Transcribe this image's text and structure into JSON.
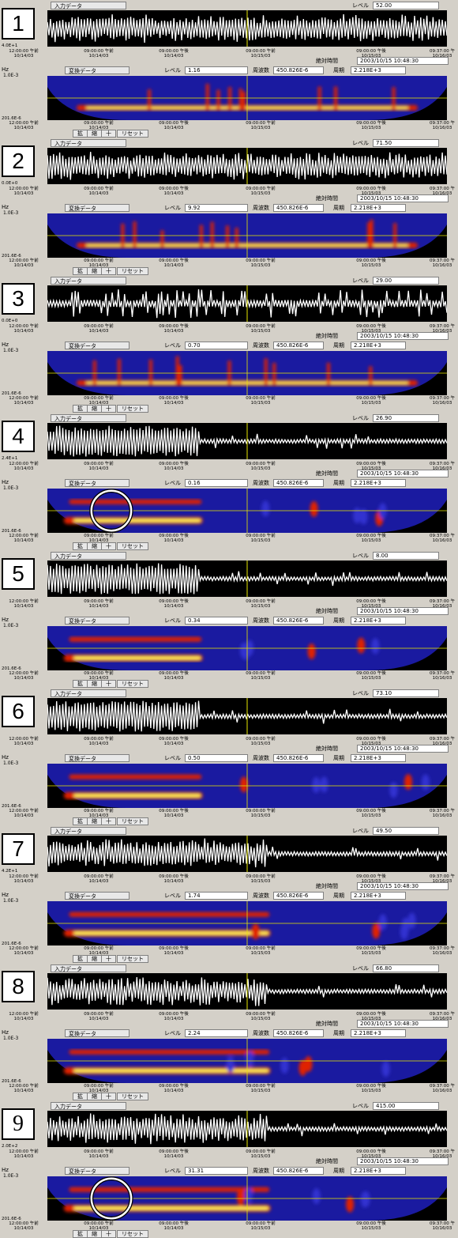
{
  "panels": [
    {
      "number": "1",
      "input_label": "入力データ",
      "level_label": "レベル",
      "input_level": "52.00",
      "transform_label": "変換データ",
      "transform_level": "1.16",
      "wave_ymin": "4.0E+1",
      "hz": "Hz",
      "spec_top": "1.0E-3",
      "spec_bottom": "201.6E-6",
      "freq_label": "周波数",
      "freq_value": "450.826E-6",
      "period_label": "周期",
      "period_value": "2.218E+3",
      "abs_label": "絶対時間",
      "abs_value": "2003/10/15 10:48:30"
    },
    {
      "number": "2",
      "input_label": "入力データ",
      "level_label": "レベル",
      "input_level": "71.50",
      "transform_label": "変換データ",
      "transform_level": "9.92",
      "wave_ymin": "0.0E+0",
      "hz": "Hz",
      "spec_top": "1.0E-3",
      "spec_bottom": "201.6E-6",
      "freq_label": "周波数",
      "freq_value": "450.826E-6",
      "period_label": "周期",
      "period_value": "2.218E+3",
      "abs_label": "絶対時間",
      "abs_value": "2003/10/15 10:48:30"
    },
    {
      "number": "3",
      "input_label": "入力データ",
      "level_label": "レベル",
      "input_level": "29.00",
      "transform_label": "変換データ",
      "transform_level": "0.70",
      "wave_ymin": "0.0E+0",
      "hz": "Hz",
      "spec_top": "1.0E-3",
      "spec_bottom": "201.6E-6",
      "freq_label": "周波数",
      "freq_value": "450.826E-6",
      "period_label": "周期",
      "period_value": "2.218E+3",
      "abs_label": "絶対時間",
      "abs_value": "2003/10/15 10:48:30"
    },
    {
      "number": "4",
      "input_label": "入力データ",
      "level_label": "レベル",
      "input_level": "26.90",
      "transform_label": "変換データ",
      "transform_level": "0.16",
      "wave_ymin": "2.4E+1",
      "hz": "Hz",
      "spec_top": "1.0E-3",
      "spec_bottom": "201.6E-6",
      "freq_label": "周波数",
      "freq_value": "450.826E-6",
      "period_label": "周期",
      "period_value": "2.218E+3",
      "abs_label": "絶対時間",
      "abs_value": "2003/10/15 10:48:30"
    },
    {
      "number": "5",
      "input_label": "入力データ",
      "level_label": "レベル",
      "input_level": "8.00",
      "transform_label": "変換データ",
      "transform_level": "0.34",
      "wave_ymin": "",
      "hz": "Hz",
      "spec_top": "1.0E-3",
      "spec_bottom": "201.6E-6",
      "freq_label": "周波数",
      "freq_value": "450.826E-6",
      "period_label": "周期",
      "period_value": "2.218E+3",
      "abs_label": "絶対時間",
      "abs_value": "2003/10/15 10:48:30"
    },
    {
      "number": "6",
      "input_label": "入力データ",
      "level_label": "レベル",
      "input_level": "73.10",
      "transform_label": "変換データ",
      "transform_level": "0.50",
      "wave_ymin": "",
      "hz": "Hz",
      "spec_top": "1.0E-3",
      "spec_bottom": "201.6E-6",
      "freq_label": "周波数",
      "freq_value": "450.826E-6",
      "period_label": "周期",
      "period_value": "2.218E+3",
      "abs_label": "絶対時間",
      "abs_value": "2003/10/15 10:48:30"
    },
    {
      "number": "7",
      "input_label": "入力データ",
      "level_label": "レベル",
      "input_level": "49.50",
      "transform_label": "変換データ",
      "transform_level": "1.74",
      "wave_ymin": "4.2E+1",
      "hz": "Hz",
      "spec_top": "1.0E-3",
      "spec_bottom": "201.6E-6",
      "freq_label": "周波数",
      "freq_value": "450.826E-6",
      "period_label": "周期",
      "period_value": "2.218E+3",
      "abs_label": "絶対時間",
      "abs_value": "2003/10/15 10:48:30"
    },
    {
      "number": "8",
      "input_label": "入力データ",
      "level_label": "レベル",
      "input_level": "66.80",
      "transform_label": "変換データ",
      "transform_level": "2.24",
      "wave_ymin": "",
      "hz": "Hz",
      "spec_top": "1.0E-3",
      "spec_bottom": "201.6E-6",
      "freq_label": "周波数",
      "freq_value": "450.826E-6",
      "period_label": "周期",
      "period_value": "2.218E+3",
      "abs_label": "絶対時間",
      "abs_value": "2003/10/15 10:48:30"
    },
    {
      "number": "9",
      "input_label": "入力データ",
      "level_label": "レベル",
      "input_level": "415.00",
      "transform_label": "変換データ",
      "transform_level": "31.31",
      "wave_ymin": "2.0E+2",
      "hz": "Hz",
      "spec_top": "1.0E-3",
      "spec_bottom": "201.6E-6",
      "freq_label": "周波数",
      "freq_value": "450.826E-6",
      "period_label": "周期",
      "period_value": "2.218E+3",
      "abs_label": "絶対時間",
      "abs_value": "2003/10/15 10:48:30"
    }
  ],
  "axis_ticks": [
    {
      "time": "12:00:00 午前",
      "date": "10/14/03"
    },
    {
      "time": "09:00:00 午前",
      "date": "10/14/03"
    },
    {
      "time": "09:00:00 午後",
      "date": "10/14/03"
    },
    {
      "time": "09:00:00 午前",
      "date": "10/15/03"
    },
    {
      "time": "09:00:00 午後",
      "date": "10/15/03"
    },
    {
      "time": "09:37:00 午",
      "date": "10/16/03"
    }
  ],
  "controls": {
    "zoom_in": "拡",
    "zoom_out": "縮",
    "plus": "十",
    "reset": "リセット"
  },
  "colors": {
    "wave_bg": "#000000",
    "wave_line": "#ffffff",
    "cursor": "#e8e800",
    "spec_blue": "#1a1aa0",
    "spec_red": "#e02000",
    "spec_yellow": "#ffff60",
    "window": "#d4d0c8"
  }
}
